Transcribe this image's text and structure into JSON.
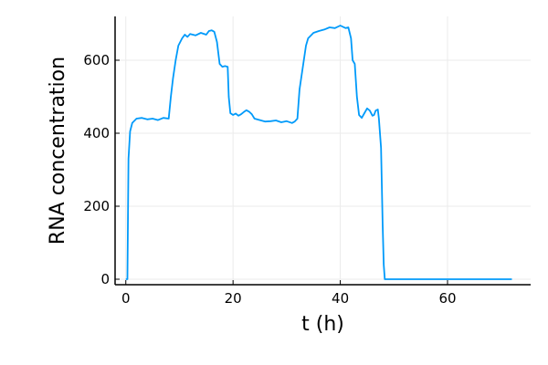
{
  "chart_data": {
    "type": "line",
    "title": "",
    "xlabel": "t (h)",
    "ylabel": "RNA concentration",
    "xlim": [
      -2,
      75.5
    ],
    "ylim": [
      -15,
      720
    ],
    "xticks": [
      0,
      20,
      40,
      60
    ],
    "yticks": [
      0,
      200,
      400,
      600
    ],
    "grid": true,
    "legend": "none",
    "colors": {
      "line": "#009AFA",
      "grid": "#EBEBEB",
      "axis": "#000000"
    },
    "series": [
      {
        "points": [
          [
            0,
            0
          ],
          [
            0.3,
            0
          ],
          [
            0.5,
            330
          ],
          [
            0.8,
            405
          ],
          [
            1.2,
            428
          ],
          [
            2,
            440
          ],
          [
            3,
            442
          ],
          [
            4,
            438
          ],
          [
            5,
            440
          ],
          [
            6,
            436
          ],
          [
            7,
            442
          ],
          [
            8,
            440
          ],
          [
            8.4,
            500
          ],
          [
            8.8,
            550
          ],
          [
            9.3,
            600
          ],
          [
            9.8,
            640
          ],
          [
            10.5,
            660
          ],
          [
            11,
            670
          ],
          [
            11.5,
            664
          ],
          [
            12,
            672
          ],
          [
            13,
            668
          ],
          [
            14,
            675
          ],
          [
            15,
            670
          ],
          [
            15.5,
            680
          ],
          [
            16,
            682
          ],
          [
            16.5,
            678
          ],
          [
            17,
            650
          ],
          [
            17.5,
            590
          ],
          [
            18,
            582
          ],
          [
            18.5,
            584
          ],
          [
            19,
            582
          ],
          [
            19.2,
            500
          ],
          [
            19.5,
            455
          ],
          [
            20,
            450
          ],
          [
            20.5,
            454
          ],
          [
            21,
            448
          ],
          [
            21.5,
            452
          ],
          [
            22,
            458
          ],
          [
            22.5,
            463
          ],
          [
            23,
            459
          ],
          [
            23.5,
            452
          ],
          [
            24,
            440
          ],
          [
            25,
            436
          ],
          [
            26,
            432
          ],
          [
            27,
            433
          ],
          [
            28,
            435
          ],
          [
            29,
            430
          ],
          [
            30,
            433
          ],
          [
            31,
            428
          ],
          [
            31.5,
            432
          ],
          [
            32,
            440
          ],
          [
            32.4,
            520
          ],
          [
            32.8,
            560
          ],
          [
            33.2,
            600
          ],
          [
            33.6,
            640
          ],
          [
            34,
            660
          ],
          [
            35,
            675
          ],
          [
            36,
            680
          ],
          [
            37,
            684
          ],
          [
            38,
            690
          ],
          [
            39,
            688
          ],
          [
            40,
            695
          ],
          [
            41,
            688
          ],
          [
            41.5,
            690
          ],
          [
            42,
            660
          ],
          [
            42.3,
            600
          ],
          [
            42.7,
            590
          ],
          [
            43.1,
            500
          ],
          [
            43.5,
            450
          ],
          [
            44,
            442
          ],
          [
            44.5,
            455
          ],
          [
            45,
            468
          ],
          [
            45.5,
            462
          ],
          [
            46,
            448
          ],
          [
            46.3,
            450
          ],
          [
            46.6,
            462
          ],
          [
            47,
            465
          ],
          [
            47.2,
            440
          ],
          [
            47.6,
            360
          ],
          [
            47.9,
            150
          ],
          [
            48.1,
            40
          ],
          [
            48.3,
            0
          ],
          [
            72,
            0
          ]
        ]
      }
    ]
  }
}
